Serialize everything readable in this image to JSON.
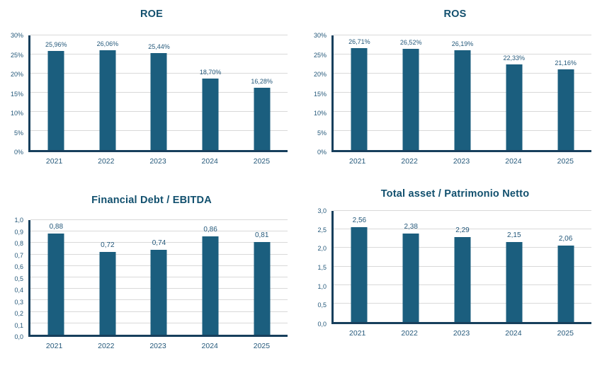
{
  "styles": {
    "bar_color": "#1b5e7e",
    "title_color": "#12506e",
    "text_color": "#24587a",
    "grid_color": "#d9d9d9",
    "axis_color": "#173f5c",
    "background": "#ffffff"
  },
  "chart_data": [
    {
      "type": "bar",
      "title": "ROE",
      "categories": [
        "2021",
        "2022",
        "2023",
        "2024",
        "2025"
      ],
      "values": [
        25.96,
        26.06,
        25.44,
        18.7,
        16.28
      ],
      "value_labels": [
        "25,96%",
        "26,06%",
        "25,44%",
        "18,70%",
        "16,28%"
      ],
      "xlabel": "",
      "ylabel": "",
      "ylim": [
        0,
        30
      ],
      "yticks": [
        0,
        5,
        10,
        15,
        20,
        25,
        30
      ],
      "ytick_labels": [
        "0%",
        "5%",
        "10%",
        "15%",
        "20%",
        "25%",
        "30%"
      ],
      "grid": true,
      "legend": "none"
    },
    {
      "type": "bar",
      "title": "ROS",
      "categories": [
        "2021",
        "2022",
        "2023",
        "2024",
        "2025"
      ],
      "values": [
        26.71,
        26.52,
        26.19,
        22.33,
        21.16
      ],
      "value_labels": [
        "26,71%",
        "26,52%",
        "26,19%",
        "22,33%",
        "21,16%"
      ],
      "xlabel": "",
      "ylabel": "",
      "ylim": [
        0,
        30
      ],
      "yticks": [
        0,
        5,
        10,
        15,
        20,
        25,
        30
      ],
      "ytick_labels": [
        "0%",
        "5%",
        "10%",
        "15%",
        "20%",
        "25%",
        "30%"
      ],
      "grid": true,
      "legend": "none"
    },
    {
      "type": "bar",
      "title": "Financial Debt / EBITDA",
      "categories": [
        "2021",
        "2022",
        "2023",
        "2024",
        "2025"
      ],
      "values": [
        0.88,
        0.72,
        0.74,
        0.86,
        0.81
      ],
      "value_labels": [
        "0,88",
        "0,72",
        "0,74",
        "0,86",
        "0,81"
      ],
      "xlabel": "",
      "ylabel": "",
      "ylim": [
        0,
        1
      ],
      "yticks": [
        0,
        0.1,
        0.2,
        0.3,
        0.4,
        0.5,
        0.6,
        0.7,
        0.8,
        0.9,
        1
      ],
      "ytick_labels": [
        "0,0",
        "0,1",
        "0,2",
        "0,3",
        "0,4",
        "0,5",
        "0,6",
        "0,7",
        "0,8",
        "0,9",
        "1,0"
      ],
      "grid": true,
      "legend": "none"
    },
    {
      "type": "bar",
      "title": "Total asset /  Patrimonio Netto",
      "categories": [
        "2021",
        "2022",
        "2023",
        "2024",
        "2025"
      ],
      "values": [
        2.56,
        2.38,
        2.29,
        2.15,
        2.06
      ],
      "value_labels": [
        "2,56",
        "2,38",
        "2,29",
        "2,15",
        "2,06"
      ],
      "xlabel": "",
      "ylabel": "",
      "ylim": [
        0,
        3
      ],
      "yticks": [
        0,
        0.5,
        1,
        1.5,
        2,
        2.5,
        3
      ],
      "ytick_labels": [
        "0,0",
        "0,5",
        "1,0",
        "1,5",
        "2,0",
        "2,5",
        "3,0"
      ],
      "grid": true,
      "legend": "none"
    }
  ]
}
